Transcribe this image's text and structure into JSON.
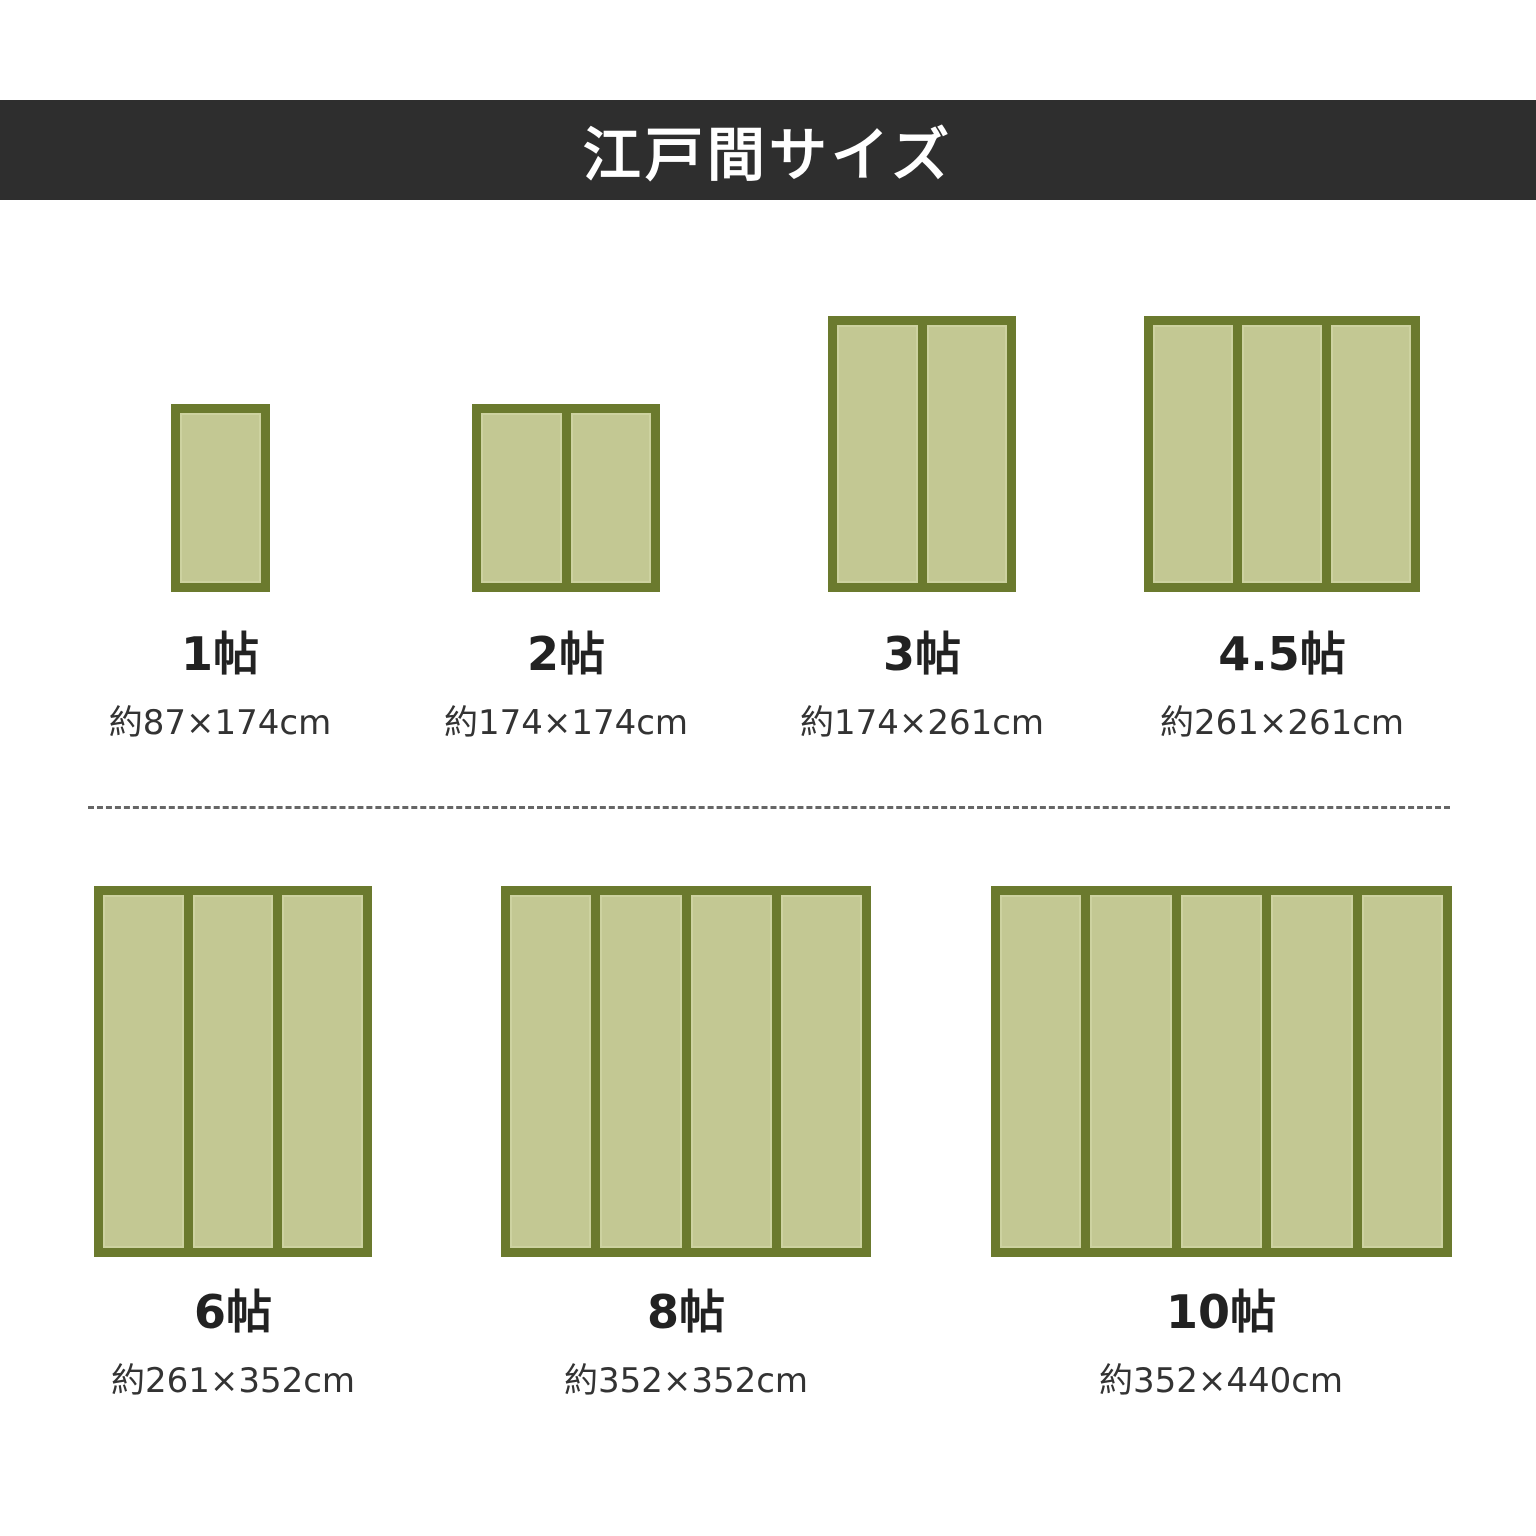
{
  "header": {
    "title": "江戸間サイズ"
  },
  "colors": {
    "header_bg": "#2e2e2e",
    "mat_border": "#6b7a2e",
    "mat_fill": "#c3c893"
  },
  "sizes": [
    {
      "label": "1帖",
      "dims": "約87×174cm",
      "panels": 1
    },
    {
      "label": "2帖",
      "dims": "約174×174cm",
      "panels": 2
    },
    {
      "label": "3帖",
      "dims": "約174×261cm",
      "panels": 2
    },
    {
      "label": "4.5帖",
      "dims": "約261×261cm",
      "panels": 3
    },
    {
      "label": "6帖",
      "dims": "約261×352cm",
      "panels": 3
    },
    {
      "label": "8帖",
      "dims": "約352×352cm",
      "panels": 4
    },
    {
      "label": "10帖",
      "dims": "約352×440cm",
      "panels": 5
    }
  ]
}
